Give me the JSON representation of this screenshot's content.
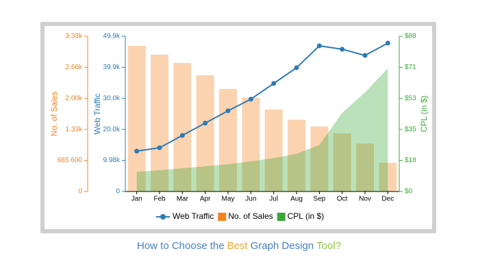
{
  "chart_data": {
    "type": "combo",
    "categories": [
      "Jan",
      "Feb",
      "Mar",
      "Apr",
      "May",
      "Jun",
      "Jul",
      "Aug",
      "Sep",
      "Oct",
      "Nov",
      "Dec"
    ],
    "y_label": "Web Traffic",
    "y_color": "#2e7bb6",
    "ylim": [
      0,
      49900
    ],
    "yticks": [
      {
        "value": 0,
        "label": "0"
      },
      {
        "value": 9980,
        "label": "9.98k"
      },
      {
        "value": 19960,
        "label": "20.0k"
      },
      {
        "value": 29940,
        "label": "30.0k"
      },
      {
        "value": 39920,
        "label": "39.9k"
      },
      {
        "value": 49900,
        "label": "49.9k"
      }
    ],
    "y2_label": "CPL (in $)",
    "y2_color": "#3aa83a",
    "y2lim": [
      0,
      88
    ],
    "y2ticks": [
      {
        "value": 0,
        "label": "$0"
      },
      {
        "value": 17.6,
        "label": "$18"
      },
      {
        "value": 35.2,
        "label": "$35"
      },
      {
        "value": 52.8,
        "label": "$53"
      },
      {
        "value": 70.4,
        "label": "$71"
      },
      {
        "value": 88,
        "label": "$88"
      }
    ],
    "y3_label": "No. of Sales",
    "y3_color": "#f58220",
    "y3lim": [
      0,
      3328
    ],
    "y3ticks": [
      {
        "value": 0,
        "label": "0"
      },
      {
        "value": 665.6,
        "label": "665.600"
      },
      {
        "value": 1331.2,
        "label": "1.33k"
      },
      {
        "value": 1996.8,
        "label": "2.00k"
      },
      {
        "value": 2662.4,
        "label": "2.66k"
      },
      {
        "value": 3328,
        "label": "3.33k"
      }
    ],
    "series": [
      {
        "name": "Web Traffic",
        "type": "line",
        "axis": "y",
        "color": "#2e7bb6",
        "values": [
          12970,
          14069,
          18025,
          21982,
          25939,
          29676,
          34732,
          39789,
          46823,
          45724,
          43745,
          47702
        ]
      },
      {
        "name": "No. of Sales",
        "type": "bar",
        "axis": "y3",
        "color": "#f58220",
        "values": [
          3123,
          2932,
          2756,
          2492,
          2199,
          2008,
          1759,
          1539,
          1393,
          1246,
          1026,
          616
        ]
      },
      {
        "name": "CPL (in $)",
        "type": "area",
        "axis": "y2",
        "color": "#3aa83a",
        "values": [
          11.2,
          12.0,
          13.2,
          14.3,
          15.5,
          17.1,
          19.0,
          21.3,
          26.4,
          44.6,
          56.2,
          69.8
        ]
      }
    ]
  },
  "page_title": [
    {
      "text": "How to Choose the",
      "color": "#4a7fc1"
    },
    {
      "text": "Best",
      "color": "#f0a830"
    },
    {
      "text": "Graph Design",
      "color": "#4a7fc1"
    },
    {
      "text": "Tool?",
      "color": "#8dc63f"
    }
  ]
}
